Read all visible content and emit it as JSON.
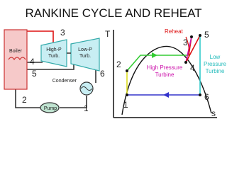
{
  "title": "RANKINE CYCLE AND REHEAT",
  "schematic": {
    "components": {
      "boiler": "Boiler",
      "high_p_turbine": [
        "High-P",
        "Turb."
      ],
      "low_p_turbine": [
        "Low-P",
        "Turb."
      ],
      "condenser": "Condenser",
      "pump": "Pump"
    },
    "states": [
      "1",
      "2",
      "3",
      "4",
      "5",
      "6"
    ]
  },
  "ts_diagram": {
    "axes": {
      "y": "T",
      "x": "s"
    },
    "states": [
      "1",
      "2",
      "3",
      "4",
      "5",
      "6"
    ],
    "annotations": {
      "reheat": "Reheat",
      "high_pressure_turbine": [
        "High Pressure",
        "Turbine"
      ],
      "low_pressure_turbine": [
        "Low",
        "Pressure",
        "Turbine"
      ]
    }
  }
}
